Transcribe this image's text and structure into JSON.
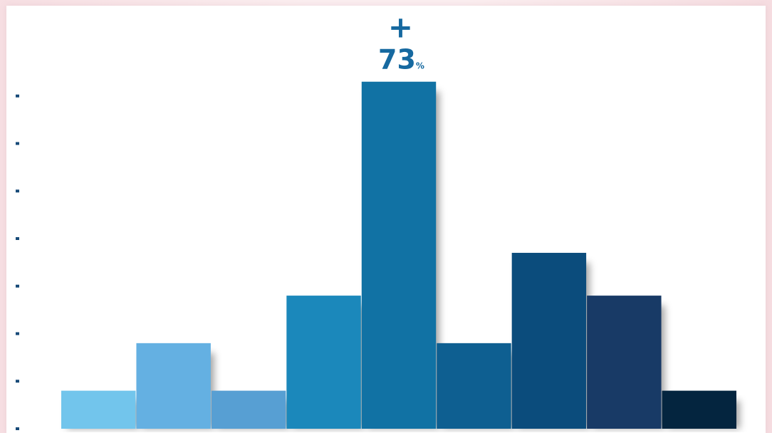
{
  "chart_data": {
    "type": "bar",
    "values": [
      8,
      18,
      8,
      28,
      73,
      18,
      37,
      28,
      8
    ],
    "ylim": [
      0,
      80
    ],
    "yticks": [
      0,
      10,
      20,
      30,
      40,
      50,
      60,
      70
    ],
    "grid": false,
    "highlight": {
      "index": 4,
      "sign": "+",
      "value": "73",
      "unit": "%"
    },
    "bar_colors": [
      "#72c5ec",
      "#64b0e2",
      "#579fd3",
      "#1b88bb",
      "#1172a4",
      "#0e5f91",
      "#0b4c7c",
      "#183a66",
      "#04253f"
    ],
    "tick_color": "#174a78",
    "label_color": "#1669a0"
  }
}
